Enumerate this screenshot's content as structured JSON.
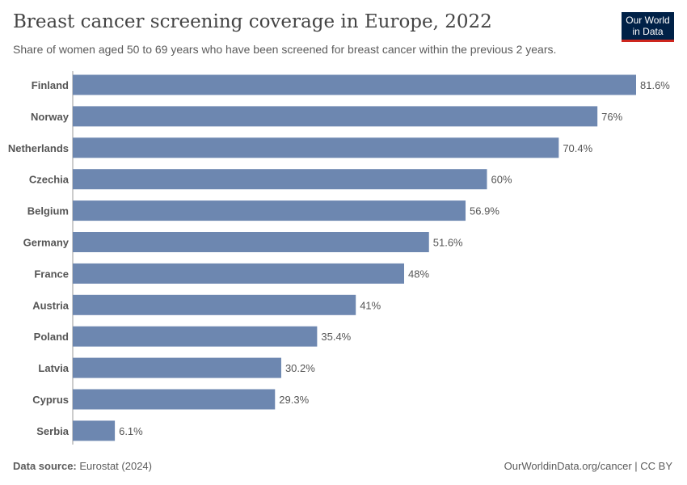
{
  "header": {
    "title": "Breast cancer screening coverage in Europe, 2022",
    "subtitle": "Share of women aged 50 to 69 years who have been screened for breast cancer within the previous 2 years.",
    "logo": "Our World in Data"
  },
  "footer": {
    "source_label": "Data source:",
    "source": "Eurostat (2024)",
    "right": "OurWorldinData.org/cancer | CC BY"
  },
  "chart_data": {
    "type": "bar",
    "orientation": "horizontal",
    "title": "Breast cancer screening coverage in Europe, 2022",
    "categories": [
      "Finland",
      "Norway",
      "Netherlands",
      "Czechia",
      "Belgium",
      "Germany",
      "France",
      "Austria",
      "Poland",
      "Latvia",
      "Cyprus",
      "Serbia"
    ],
    "values": [
      81.6,
      76,
      70.4,
      60,
      56.9,
      51.6,
      48,
      41,
      35.4,
      30.2,
      29.3,
      6.1
    ],
    "labels": [
      "81.6%",
      "76%",
      "70.4%",
      "60%",
      "56.9%",
      "51.6%",
      "48%",
      "41%",
      "35.4%",
      "30.2%",
      "29.3%",
      "6.1%"
    ],
    "unit": "%",
    "xlim": [
      0,
      81.6
    ],
    "grid": false,
    "bar_color": "#6d87b0"
  }
}
